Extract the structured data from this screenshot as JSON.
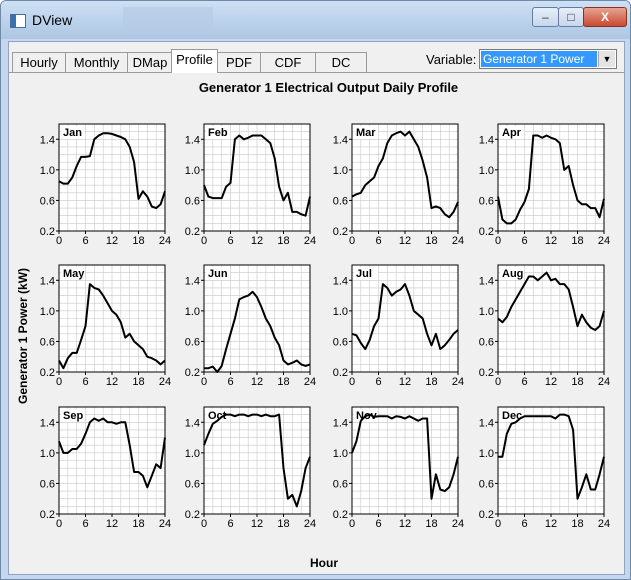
{
  "window": {
    "title": "DView",
    "buttons": {
      "minimize": "–",
      "maximize": "□",
      "close": "X"
    }
  },
  "tabs": [
    {
      "label": "Hourly"
    },
    {
      "label": "Monthly"
    },
    {
      "label": "DMap"
    },
    {
      "label": "Profile",
      "active": true
    },
    {
      "label": "PDF"
    },
    {
      "label": "CDF"
    },
    {
      "label": "DC"
    }
  ],
  "variable": {
    "label": "Variable:",
    "selected": "Generator 1 Power"
  },
  "chart_data": {
    "type": "line",
    "title": "Generator 1 Electrical Output Daily Profile",
    "xlabel": "Hour",
    "ylabel": "Generator 1 Power (kW)",
    "xlim": [
      0,
      24
    ],
    "ylim": [
      0.2,
      1.6
    ],
    "xticks": [
      0,
      6,
      12,
      18,
      24
    ],
    "yticks": [
      0.2,
      0.6,
      1.0,
      1.4
    ],
    "grid": true,
    "x": [
      0,
      1,
      2,
      3,
      4,
      5,
      6,
      7,
      8,
      9,
      10,
      11,
      12,
      13,
      14,
      15,
      16,
      17,
      18,
      19,
      20,
      21,
      22,
      23,
      24
    ],
    "series": [
      {
        "name": "Jan",
        "values": [
          0.85,
          0.82,
          0.82,
          0.9,
          1.05,
          1.17,
          1.17,
          1.18,
          1.4,
          1.45,
          1.48,
          1.48,
          1.47,
          1.45,
          1.43,
          1.4,
          1.3,
          1.1,
          0.62,
          0.72,
          0.65,
          0.52,
          0.5,
          0.55,
          0.72
        ]
      },
      {
        "name": "Feb",
        "values": [
          0.8,
          0.65,
          0.63,
          0.63,
          0.63,
          0.78,
          0.83,
          1.4,
          1.45,
          1.4,
          1.42,
          1.45,
          1.45,
          1.45,
          1.4,
          1.35,
          1.15,
          0.78,
          0.6,
          0.7,
          0.45,
          0.45,
          0.42,
          0.4,
          0.65
        ]
      },
      {
        "name": "Mar",
        "values": [
          0.65,
          0.68,
          0.7,
          0.8,
          0.85,
          0.9,
          1.05,
          1.15,
          1.35,
          1.45,
          1.48,
          1.5,
          1.45,
          1.5,
          1.4,
          1.3,
          1.12,
          0.9,
          0.5,
          0.52,
          0.5,
          0.42,
          0.38,
          0.45,
          0.58
        ]
      },
      {
        "name": "Apr",
        "values": [
          0.65,
          0.35,
          0.3,
          0.3,
          0.35,
          0.48,
          0.58,
          0.75,
          1.45,
          1.45,
          1.42,
          1.45,
          1.42,
          1.4,
          1.35,
          1.0,
          1.05,
          0.8,
          0.6,
          0.55,
          0.55,
          0.5,
          0.5,
          0.38,
          0.62
        ]
      },
      {
        "name": "May",
        "values": [
          0.35,
          0.25,
          0.38,
          0.45,
          0.45,
          0.62,
          0.8,
          1.35,
          1.3,
          1.28,
          1.2,
          1.1,
          1.0,
          0.95,
          0.85,
          0.65,
          0.7,
          0.6,
          0.55,
          0.5,
          0.4,
          0.38,
          0.35,
          0.3,
          0.35
        ]
      },
      {
        "name": "Jun",
        "values": [
          0.25,
          0.25,
          0.27,
          0.2,
          0.28,
          0.5,
          0.7,
          0.9,
          1.15,
          1.18,
          1.2,
          1.25,
          1.18,
          1.05,
          0.9,
          0.8,
          0.65,
          0.55,
          0.35,
          0.3,
          0.32,
          0.35,
          0.3,
          0.28,
          0.3
        ]
      },
      {
        "name": "Jul",
        "values": [
          0.7,
          0.68,
          0.58,
          0.5,
          0.62,
          0.8,
          0.9,
          1.35,
          1.3,
          1.2,
          1.25,
          1.28,
          1.35,
          1.2,
          1.0,
          0.95,
          0.9,
          0.7,
          0.55,
          0.7,
          0.5,
          0.55,
          0.62,
          0.7,
          0.75
        ]
      },
      {
        "name": "Aug",
        "values": [
          0.9,
          0.85,
          0.92,
          1.05,
          1.15,
          1.25,
          1.35,
          1.45,
          1.45,
          1.4,
          1.45,
          1.5,
          1.4,
          1.42,
          1.35,
          1.35,
          1.28,
          1.05,
          0.8,
          0.95,
          0.85,
          0.78,
          0.75,
          0.8,
          1.0
        ]
      },
      {
        "name": "Sep",
        "values": [
          1.15,
          1.0,
          1.0,
          1.05,
          1.05,
          1.12,
          1.25,
          1.4,
          1.45,
          1.42,
          1.45,
          1.4,
          1.4,
          1.38,
          1.4,
          1.4,
          1.1,
          0.75,
          0.75,
          0.7,
          0.55,
          0.7,
          0.85,
          0.8,
          1.2
        ]
      },
      {
        "name": "Oct",
        "values": [
          1.1,
          1.25,
          1.38,
          1.42,
          1.47,
          1.5,
          1.5,
          1.48,
          1.5,
          1.5,
          1.48,
          1.5,
          1.5,
          1.48,
          1.5,
          1.48,
          1.48,
          1.5,
          0.8,
          0.4,
          0.45,
          0.3,
          0.5,
          0.8,
          0.95
        ]
      },
      {
        "name": "Nov",
        "values": [
          1.0,
          1.15,
          1.42,
          1.48,
          1.5,
          1.47,
          1.48,
          1.48,
          1.48,
          1.45,
          1.48,
          1.47,
          1.45,
          1.48,
          1.45,
          1.42,
          1.45,
          1.45,
          0.4,
          0.72,
          0.52,
          0.5,
          0.55,
          0.72,
          0.95
        ]
      },
      {
        "name": "Dec",
        "values": [
          0.95,
          0.95,
          1.25,
          1.38,
          1.4,
          1.45,
          1.48,
          1.48,
          1.48,
          1.48,
          1.48,
          1.48,
          1.48,
          1.45,
          1.5,
          1.5,
          1.48,
          1.3,
          0.4,
          0.55,
          0.72,
          0.52,
          0.52,
          0.72,
          0.95
        ]
      }
    ]
  }
}
